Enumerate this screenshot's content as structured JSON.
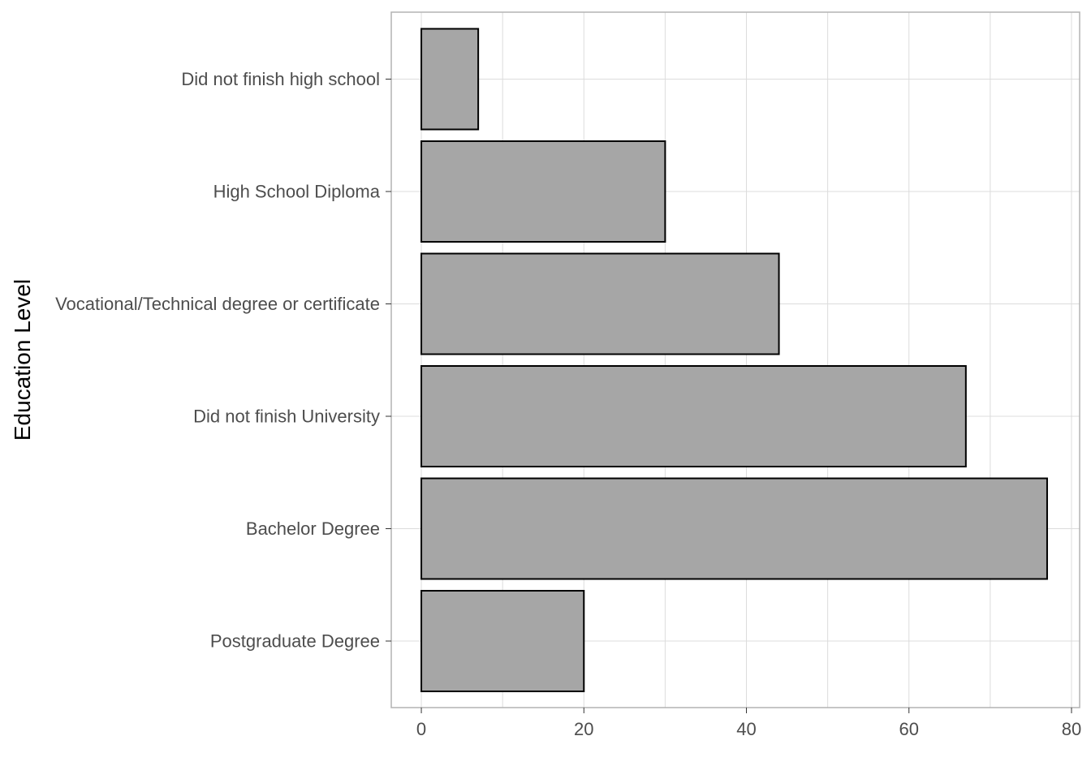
{
  "chart_data": {
    "type": "bar",
    "orientation": "horizontal",
    "categories": [
      "Did not finish high school",
      "High School Diploma",
      "Vocational/Technical degree or certificate",
      "Did not finish University",
      "Bachelor Degree",
      "Postgraduate Degree"
    ],
    "values": [
      7,
      30,
      44,
      67,
      77,
      20
    ],
    "xlabel": "",
    "ylabel": "Education Level",
    "xlim": [
      -3.7,
      81
    ],
    "xticks": [
      0,
      20,
      40,
      60,
      80
    ],
    "grid": true,
    "legend": "none",
    "colors": {
      "bar_fill": "#a6a6a6",
      "bar_stroke": "#000000",
      "grid": "#dcdcdc",
      "panel_border": "#b3b3b3"
    }
  }
}
